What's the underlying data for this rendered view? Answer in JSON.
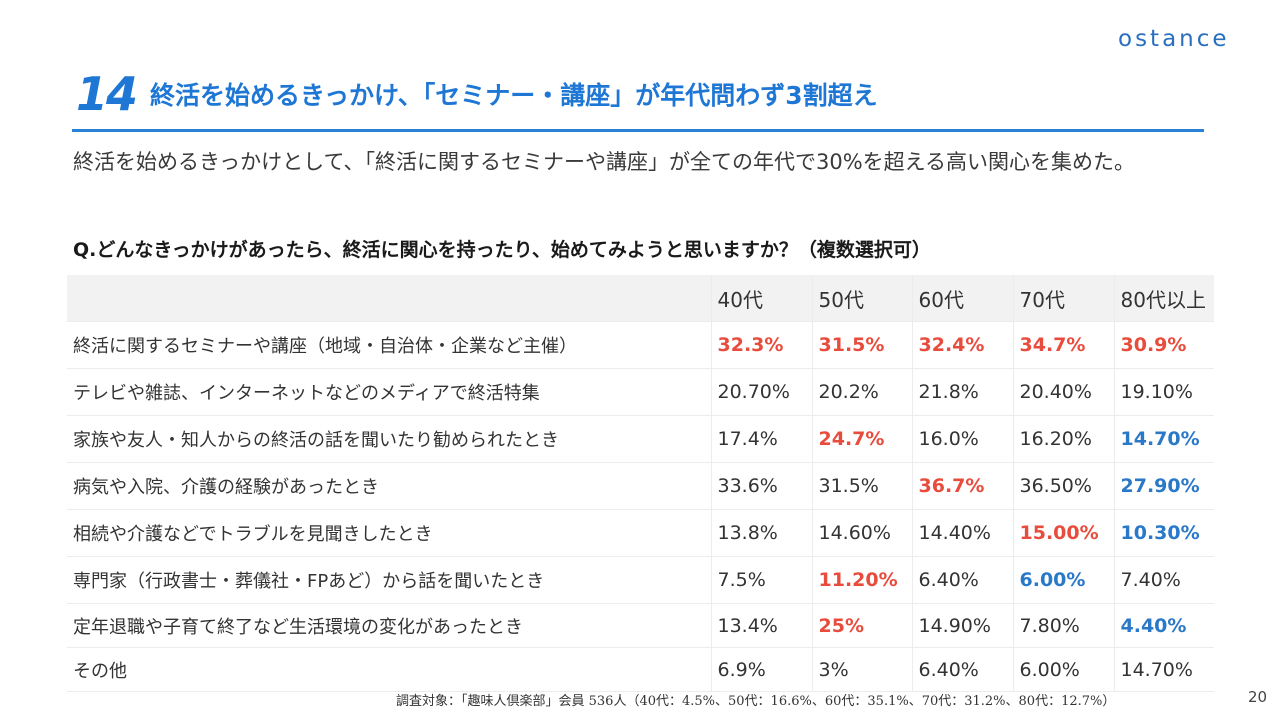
{
  "logo": "ostance",
  "slide_number": "14",
  "headline": "終活を始めるきっかけ、「セミナー・講座」が年代問わず3割超え",
  "lead": "終活を始めるきっかけとして、「終活に関するセミナーや講座」が全ての年代で30%を超える高い関心を集めた。",
  "question": "Q.どんなきっかけがあったら、終活に関心を持ったり、始めてみようと思いますか？（複数選択可）",
  "colors": {
    "accent": "#1e77d4",
    "highlight_high": "#e84c3d",
    "highlight_low": "#2a78c8",
    "header_bg": "#f2f2f2"
  },
  "table": {
    "corner": "",
    "columns": [
      "40代",
      "50代",
      "60代",
      "70代",
      "80代以上"
    ],
    "rows": [
      {
        "label": "終活に関するセミナーや講座（地域・自治体・企業など主催）",
        "cells": [
          {
            "value": "32.3%",
            "style": "red"
          },
          {
            "value": "31.5%",
            "style": "red"
          },
          {
            "value": "32.4%",
            "style": "red"
          },
          {
            "value": "34.7%",
            "style": "red"
          },
          {
            "value": "30.9%",
            "style": "red"
          }
        ]
      },
      {
        "label": "テレビや雑誌、インターネットなどのメディアで終活特集",
        "cells": [
          {
            "value": "20.70%",
            "style": ""
          },
          {
            "value": "20.2%",
            "style": ""
          },
          {
            "value": "21.8%",
            "style": ""
          },
          {
            "value": "20.40%",
            "style": ""
          },
          {
            "value": "19.10%",
            "style": ""
          }
        ]
      },
      {
        "label": "家族や友人・知人からの終活の話を聞いたり勧められたとき",
        "cells": [
          {
            "value": "17.4%",
            "style": ""
          },
          {
            "value": "24.7%",
            "style": "red"
          },
          {
            "value": "16.0%",
            "style": ""
          },
          {
            "value": "16.20%",
            "style": ""
          },
          {
            "value": "14.70%",
            "style": "blue"
          }
        ]
      },
      {
        "label": "病気や入院、介護の経験があったとき",
        "cells": [
          {
            "value": "33.6%",
            "style": ""
          },
          {
            "value": "31.5%",
            "style": ""
          },
          {
            "value": "36.7%",
            "style": "red"
          },
          {
            "value": "36.50%",
            "style": ""
          },
          {
            "value": "27.90%",
            "style": "blue"
          }
        ]
      },
      {
        "label": "相続や介護などでトラブルを見聞きしたとき",
        "cells": [
          {
            "value": "13.8%",
            "style": ""
          },
          {
            "value": "14.60%",
            "style": ""
          },
          {
            "value": "14.40%",
            "style": ""
          },
          {
            "value": "15.00%",
            "style": "red"
          },
          {
            "value": "10.30%",
            "style": "blue"
          }
        ]
      },
      {
        "label": "専門家（行政書士・葬儀社・FPあど）から話を聞いたとき",
        "cells": [
          {
            "value": "7.5%",
            "style": ""
          },
          {
            "value": "11.20%",
            "style": "red"
          },
          {
            "value": "6.40%",
            "style": ""
          },
          {
            "value": "6.00%",
            "style": "blue"
          },
          {
            "value": "7.40%",
            "style": ""
          }
        ]
      },
      {
        "label": "定年退職や子育て終了など生活環境の変化があったとき",
        "cells": [
          {
            "value": "13.4%",
            "style": ""
          },
          {
            "value": "25%",
            "style": "red"
          },
          {
            "value": "14.90%",
            "style": ""
          },
          {
            "value": "7.80%",
            "style": ""
          },
          {
            "value": "4.40%",
            "style": "blue"
          }
        ]
      },
      {
        "label": "その他",
        "cells": [
          {
            "value": "6.9%",
            "style": ""
          },
          {
            "value": "3%",
            "style": ""
          },
          {
            "value": "6.40%",
            "style": ""
          },
          {
            "value": "6.00%",
            "style": ""
          },
          {
            "value": "14.70%",
            "style": ""
          }
        ]
      }
    ]
  },
  "footnote": "調査対象：「趣味人倶楽部」会員 536人（40代：4.5%、50代：16.6%、60代：35.1%、70代：31.2%、80代：12.7%）",
  "page_number": "20"
}
